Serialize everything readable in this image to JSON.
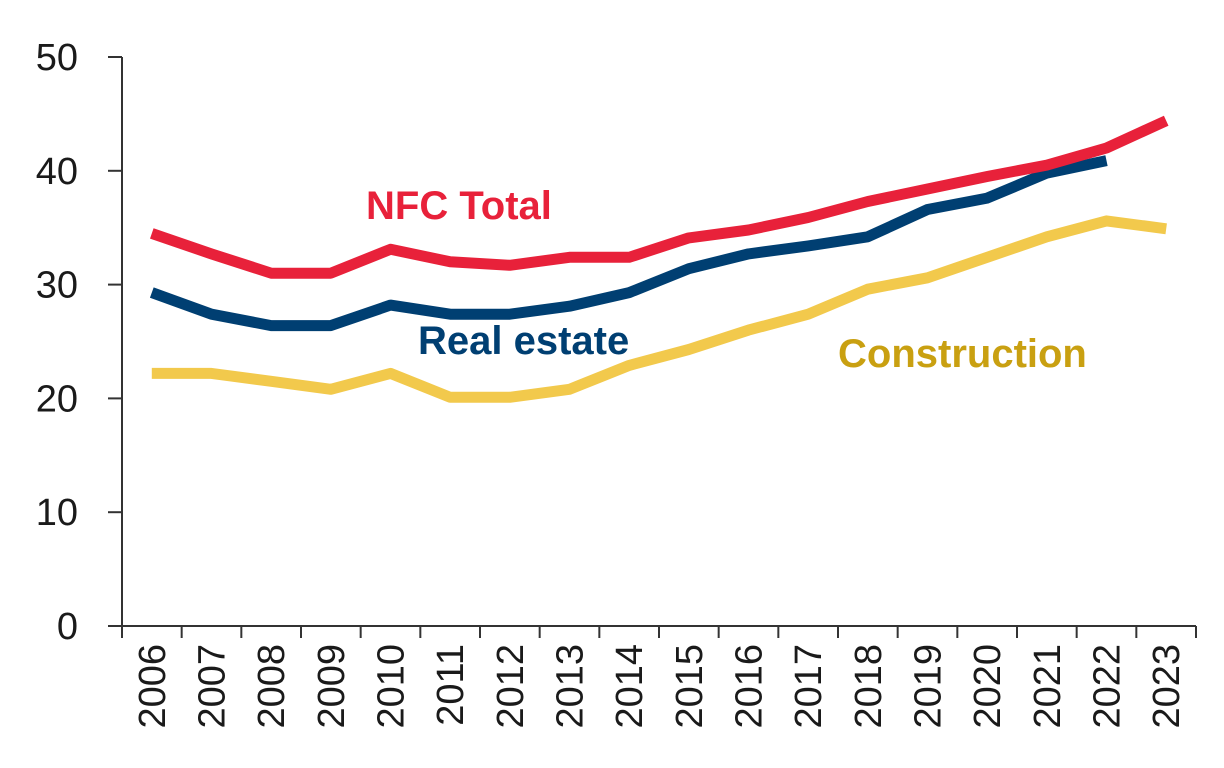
{
  "chart_data": {
    "type": "line",
    "title": "",
    "xlabel": "",
    "ylabel": "",
    "ylim": [
      0,
      50
    ],
    "yticks": [
      0,
      10,
      20,
      30,
      40,
      50
    ],
    "grid": false,
    "legend": "inline labels",
    "categories": [
      "2006",
      "2007",
      "2008",
      "2009",
      "2010",
      "2011",
      "2012",
      "2013",
      "2014",
      "2015",
      "2016",
      "2017",
      "2018",
      "2019",
      "2020",
      "2021",
      "2022",
      "2023"
    ],
    "series": [
      {
        "name": "NFC Total",
        "color": "#e8213a",
        "values": [
          34.5,
          32.7,
          31.0,
          31.0,
          33.1,
          32.0,
          31.7,
          32.4,
          32.4,
          34.1,
          34.8,
          35.9,
          37.3,
          38.4,
          39.5,
          40.5,
          42.0,
          44.4
        ]
      },
      {
        "name": "Real estate",
        "color": "#003f72",
        "values": [
          29.3,
          27.4,
          26.4,
          26.4,
          28.2,
          27.4,
          27.4,
          28.1,
          29.3,
          31.4,
          32.7,
          33.4,
          34.2,
          36.6,
          37.6,
          39.8,
          40.9,
          null
        ]
      },
      {
        "name": "Construction",
        "color": "#f2c94c",
        "label_color": "#c9a011",
        "values": [
          22.2,
          22.2,
          21.5,
          20.8,
          22.2,
          20.1,
          20.1,
          20.8,
          22.9,
          24.3,
          26.0,
          27.4,
          29.6,
          30.6,
          32.4,
          34.2,
          35.6,
          34.9
        ]
      }
    ]
  }
}
